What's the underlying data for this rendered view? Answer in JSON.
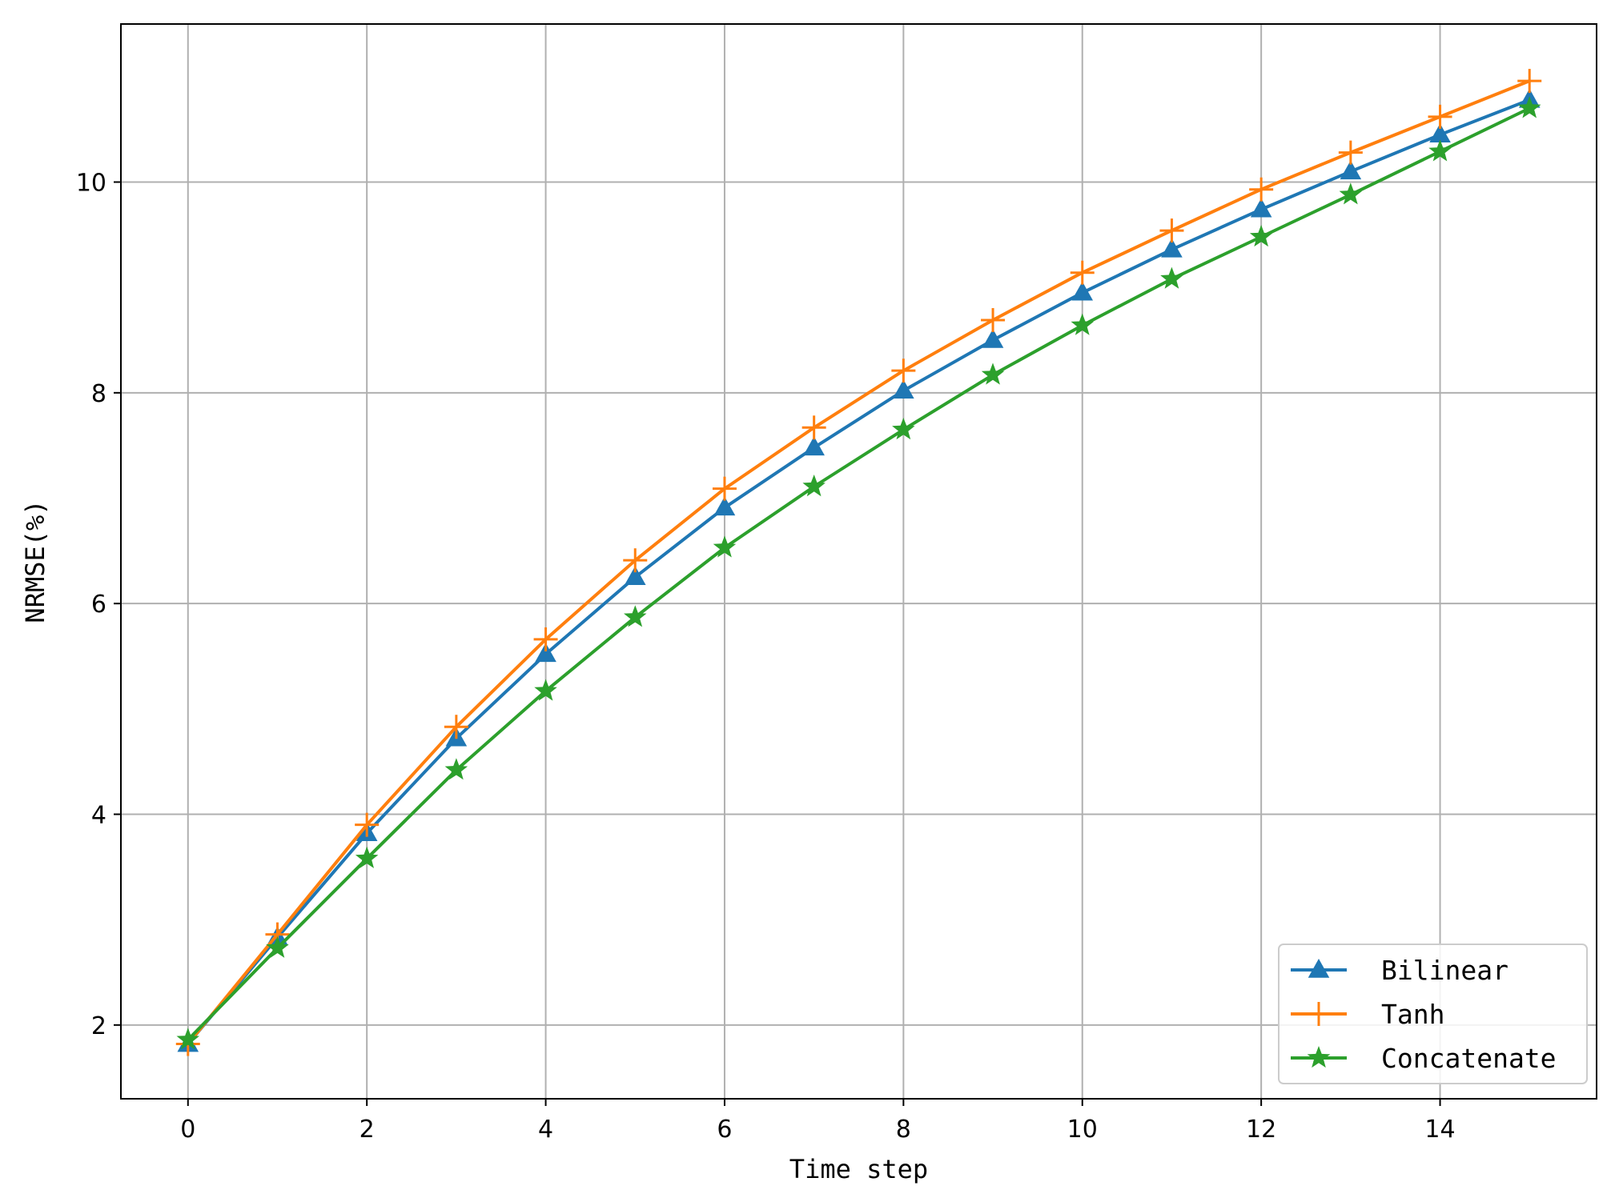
{
  "chart_data": {
    "type": "line",
    "xlabel": "Time step",
    "ylabel": "NRMSE(%)",
    "xlim": [
      -0.75,
      15.75
    ],
    "ylim": [
      1.3,
      11.5
    ],
    "xticks": [
      0,
      2,
      4,
      6,
      8,
      10,
      12,
      14
    ],
    "yticks": [
      2,
      4,
      6,
      8,
      10
    ],
    "grid": true,
    "legend_position": "lower-right",
    "x": [
      0,
      1,
      2,
      3,
      4,
      5,
      6,
      7,
      8,
      9,
      10,
      11,
      12,
      13,
      14,
      15
    ],
    "series": [
      {
        "name": "Bilinear",
        "color": "#1f77b4",
        "marker": "triangle",
        "values": [
          1.82,
          2.83,
          3.82,
          4.72,
          5.52,
          6.25,
          6.91,
          7.48,
          8.02,
          8.5,
          8.95,
          9.36,
          9.74,
          10.1,
          10.45,
          10.78
        ]
      },
      {
        "name": "Tanh",
        "color": "#ff7f0e",
        "marker": "plus",
        "values": [
          1.82,
          2.86,
          3.9,
          4.83,
          5.66,
          6.41,
          7.09,
          7.67,
          8.21,
          8.69,
          9.14,
          9.54,
          9.93,
          10.28,
          10.62,
          10.96
        ]
      },
      {
        "name": "Concatenate",
        "color": "#2ca02c",
        "marker": "star",
        "values": [
          1.86,
          2.73,
          3.58,
          4.42,
          5.17,
          5.87,
          6.53,
          7.11,
          7.65,
          8.17,
          8.64,
          9.08,
          9.48,
          9.88,
          10.29,
          10.7
        ]
      }
    ]
  }
}
